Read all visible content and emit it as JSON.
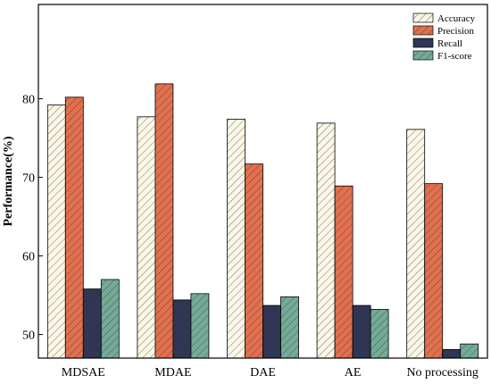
{
  "chart_data": {
    "type": "bar",
    "title": "",
    "xlabel": "",
    "ylabel": "Performance(%)",
    "ylim": [
      47,
      92
    ],
    "yticks": [
      50,
      60,
      70,
      80
    ],
    "grid": false,
    "legend_position": "top-right",
    "categories": [
      "MDSAE",
      "MDAE",
      "DAE",
      "AE",
      "No processing"
    ],
    "series": [
      {
        "name": "Accuracy",
        "values": [
          79.2,
          77.7,
          77.4,
          76.9,
          76.1
        ],
        "color": "#fbf7e6",
        "pattern": "diagonal-hatch"
      },
      {
        "name": "Precision",
        "values": [
          80.2,
          81.9,
          71.7,
          68.9,
          69.2
        ],
        "color": "#e2704e",
        "pattern": "diagonal-hatch"
      },
      {
        "name": "Recall",
        "values": [
          55.8,
          54.4,
          53.7,
          53.7,
          48.1
        ],
        "color": "#2f3656",
        "pattern": "diagonal-hatch"
      },
      {
        "name": "F1-score",
        "values": [
          57.0,
          55.2,
          54.8,
          53.2,
          48.8
        ],
        "color": "#74ab97",
        "pattern": "diagonal-hatch"
      }
    ]
  }
}
